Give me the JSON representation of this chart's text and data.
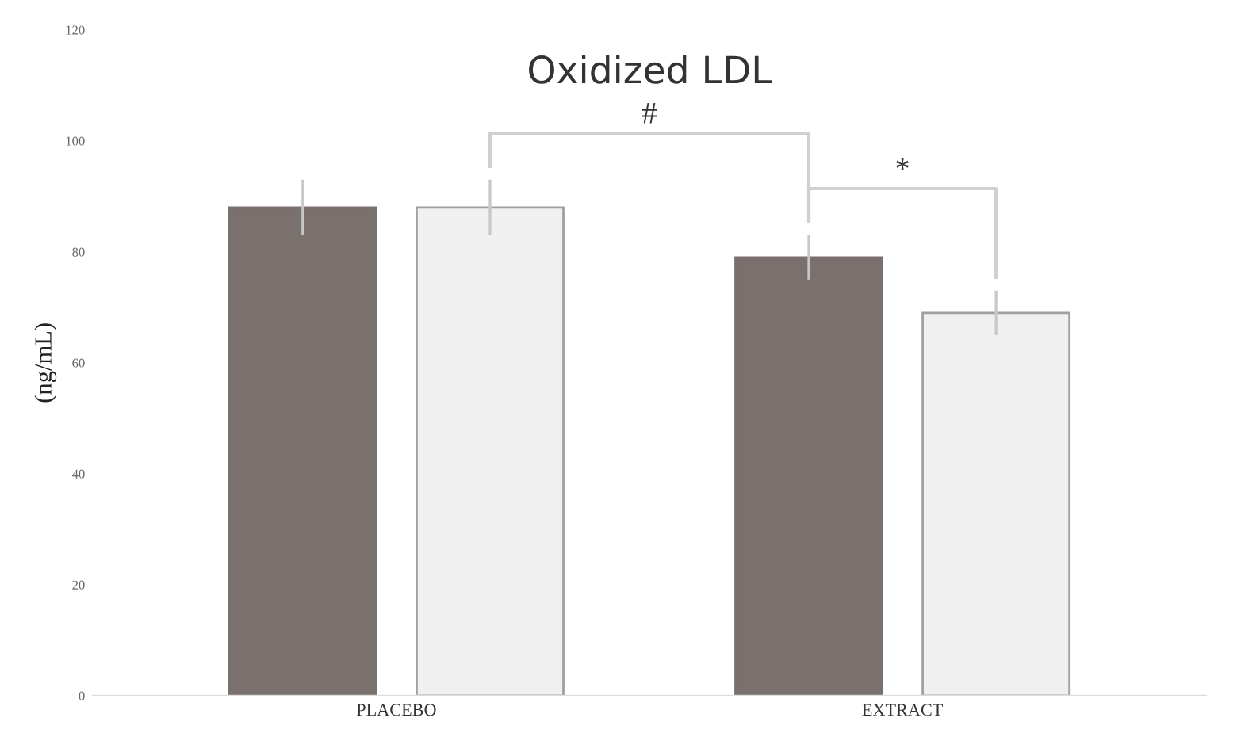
{
  "chart_data": {
    "type": "bar",
    "title": "Oxidized LDL",
    "ylabel": "(ng/mL)",
    "categories": [
      "PLACEBO",
      "EXTRACT"
    ],
    "series": [
      {
        "color": "#7a716e",
        "values": [
          88,
          79
        ],
        "errors": [
          5,
          4
        ]
      },
      {
        "color": "#f0f0f0",
        "values": [
          88,
          69
        ],
        "errors": [
          5,
          4
        ]
      }
    ],
    "ylim": [
      0,
      120
    ],
    "yticks": [
      0,
      20,
      40,
      60,
      80,
      100,
      120
    ],
    "grid": false,
    "legend": false,
    "annotations": [
      "#",
      "*"
    ]
  }
}
